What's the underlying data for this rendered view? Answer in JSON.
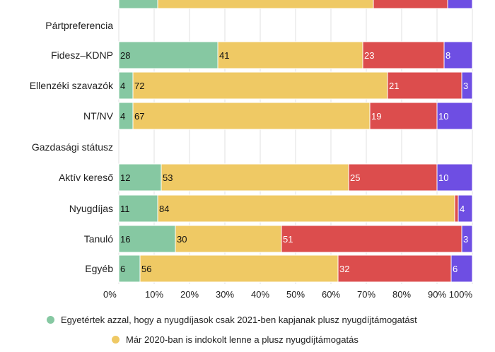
{
  "chart_data": {
    "type": "bar",
    "orientation": "horizontal",
    "stacked": true,
    "xlim": [
      0,
      100
    ],
    "x_ticks": [
      "0%",
      "10%",
      "20%",
      "30%",
      "40%",
      "50%",
      "60%",
      "70%",
      "80%",
      "90%",
      "100%"
    ],
    "grid": true,
    "rows": [
      {
        "label": "",
        "values": [
          11,
          61,
          21,
          7
        ],
        "partial": true
      },
      {
        "label": "Pártpreferencia",
        "header": true
      },
      {
        "label": "Fidesz–KDNP",
        "values": [
          28,
          41,
          23,
          8
        ]
      },
      {
        "label": "Ellenzéki szavazók",
        "values": [
          4,
          72,
          21,
          3
        ]
      },
      {
        "label": "NT/NV",
        "values": [
          4,
          67,
          19,
          10
        ]
      },
      {
        "label": "Gazdasági státusz",
        "header": true
      },
      {
        "label": "Aktív kereső",
        "values": [
          12,
          53,
          25,
          10
        ]
      },
      {
        "label": "Nyugdíjas",
        "values": [
          11,
          84,
          1,
          4
        ]
      },
      {
        "label": "Tanuló",
        "values": [
          16,
          30,
          51,
          3
        ]
      },
      {
        "label": "Egyéb",
        "values": [
          6,
          56,
          32,
          6
        ]
      }
    ],
    "series": [
      {
        "name": "Egyetértek azzal, hogy a nyugdíjasok csak 2021-ben kapjanak plusz nyugdíjtámogatást",
        "color": "#86c8a2"
      },
      {
        "name": "Már 2020-ban is indokolt lenne a plusz nyugdíjtámogatás",
        "color": "#efc964"
      },
      {
        "name": "",
        "color": "#dc4d4d"
      },
      {
        "name": "",
        "color": "#6e4ee3"
      }
    ],
    "label_colors": [
      "#111111",
      "#111111",
      "#ffffff",
      "#ffffff"
    ]
  }
}
